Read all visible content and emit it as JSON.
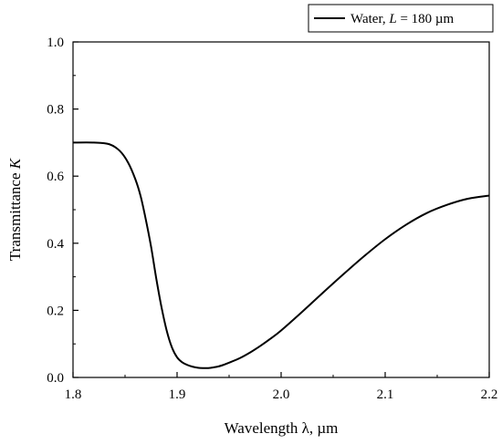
{
  "chart_data": {
    "type": "line",
    "title": "",
    "xlabel": "Wavelength λ, µm",
    "ylabel_prefix": "Transmittance ",
    "ylabel_var": "K",
    "xlim": [
      1.8,
      2.2
    ],
    "ylim": [
      0.0,
      1.0
    ],
    "xticks": [
      "1.8",
      "1.9",
      "2.0",
      "2.1",
      "2.2"
    ],
    "yticks": [
      "0.0",
      "0.2",
      "0.4",
      "0.6",
      "0.8",
      "1.0"
    ],
    "grid": false,
    "legend_position": "top-right",
    "series": [
      {
        "name": "Water, L = 180 µm",
        "legend_prefix": "Water, ",
        "legend_var": "L",
        "legend_suffix": " = 180 µm",
        "color": "#000000",
        "x": [
          1.8,
          1.82,
          1.835,
          1.845,
          1.853,
          1.86,
          1.865,
          1.87,
          1.875,
          1.88,
          1.885,
          1.89,
          1.895,
          1.9,
          1.905,
          1.91,
          1.915,
          1.92,
          1.925,
          1.93,
          1.935,
          1.94,
          1.945,
          1.95,
          1.96,
          1.97,
          1.98,
          1.99,
          2.0,
          2.02,
          2.04,
          2.06,
          2.08,
          2.1,
          2.12,
          2.14,
          2.16,
          2.18,
          2.2
        ],
        "y": [
          0.7,
          0.7,
          0.695,
          0.675,
          0.64,
          0.59,
          0.54,
          0.47,
          0.39,
          0.295,
          0.21,
          0.14,
          0.09,
          0.06,
          0.045,
          0.037,
          0.032,
          0.029,
          0.028,
          0.028,
          0.03,
          0.033,
          0.038,
          0.044,
          0.057,
          0.074,
          0.094,
          0.116,
          0.14,
          0.195,
          0.252,
          0.308,
          0.362,
          0.412,
          0.455,
          0.49,
          0.515,
          0.533,
          0.542
        ]
      }
    ]
  }
}
